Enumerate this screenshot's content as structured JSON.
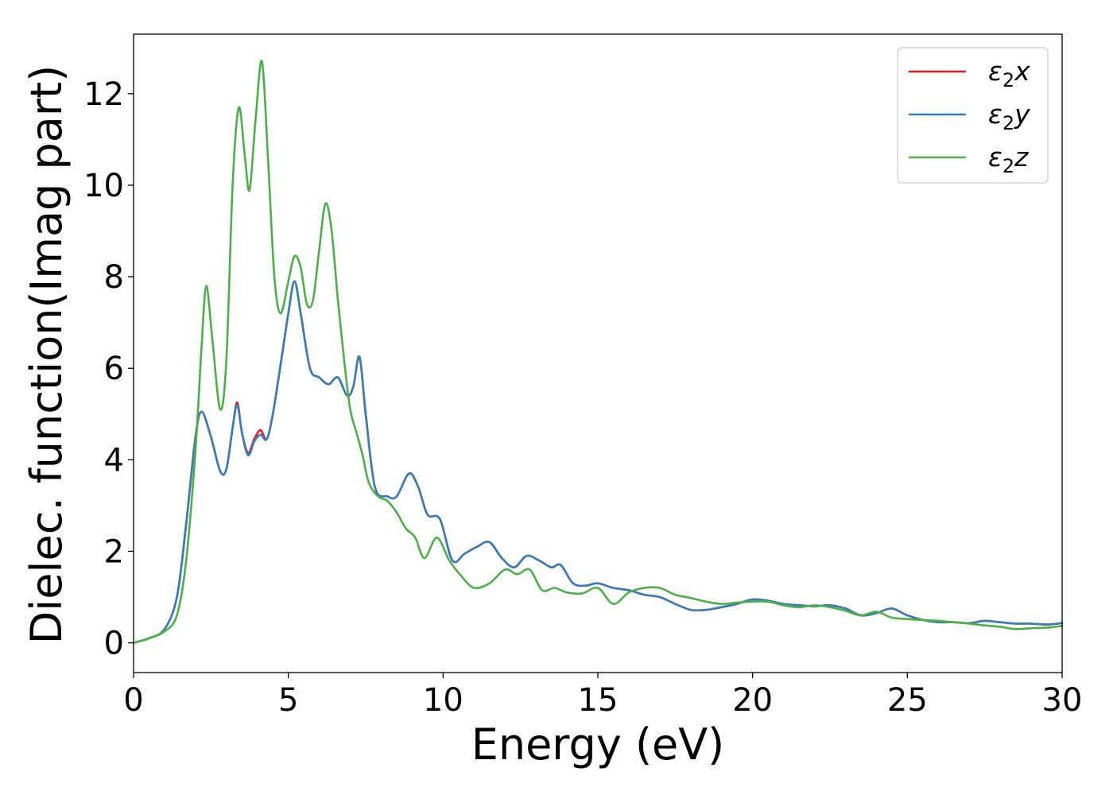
{
  "chart_data": {
    "type": "line",
    "xlabel": "Energy (eV)",
    "ylabel": "Dielec. function(Imag part)",
    "xlim": [
      0,
      30
    ],
    "ylim": [
      -0.65,
      13.3
    ],
    "xticks": [
      0,
      5,
      10,
      15,
      20,
      25,
      30
    ],
    "yticks": [
      0,
      2,
      4,
      6,
      8,
      10,
      12
    ],
    "grid": false,
    "legend_position": "top-right",
    "series": [
      {
        "name": "ε₂x",
        "legend_main": "ε",
        "legend_sub": "2",
        "legend_var": "x",
        "color": "#e41a1c",
        "points": [
          [
            0,
            0
          ],
          [
            0.5,
            0.1
          ],
          [
            1.0,
            0.3
          ],
          [
            1.4,
            1.0
          ],
          [
            1.7,
            2.6
          ],
          [
            2.0,
            4.5
          ],
          [
            2.2,
            5.05
          ],
          [
            2.5,
            4.5
          ],
          [
            2.8,
            3.75
          ],
          [
            3.0,
            3.8
          ],
          [
            3.2,
            4.7
          ],
          [
            3.35,
            5.25
          ],
          [
            3.5,
            4.6
          ],
          [
            3.7,
            4.15
          ],
          [
            3.9,
            4.45
          ],
          [
            4.1,
            4.65
          ],
          [
            4.3,
            4.45
          ],
          [
            4.5,
            5.0
          ],
          [
            4.8,
            6.3
          ],
          [
            5.0,
            7.2
          ],
          [
            5.2,
            7.9
          ],
          [
            5.4,
            7.2
          ],
          [
            5.7,
            6.0
          ],
          [
            6.0,
            5.8
          ],
          [
            6.3,
            5.65
          ],
          [
            6.6,
            5.8
          ],
          [
            6.9,
            5.4
          ],
          [
            7.1,
            5.6
          ],
          [
            7.3,
            6.25
          ],
          [
            7.5,
            5.0
          ],
          [
            7.8,
            3.4
          ],
          [
            8.2,
            3.2
          ],
          [
            8.5,
            3.2
          ],
          [
            8.9,
            3.7
          ],
          [
            9.2,
            3.4
          ],
          [
            9.5,
            2.8
          ],
          [
            9.9,
            2.7
          ],
          [
            10.3,
            1.8
          ],
          [
            10.7,
            1.95
          ],
          [
            11.1,
            2.1
          ],
          [
            11.5,
            2.2
          ],
          [
            11.9,
            1.85
          ],
          [
            12.3,
            1.65
          ],
          [
            12.7,
            1.9
          ],
          [
            13.1,
            1.8
          ],
          [
            13.5,
            1.65
          ],
          [
            13.8,
            1.7
          ],
          [
            14.2,
            1.3
          ],
          [
            14.6,
            1.25
          ],
          [
            15.0,
            1.3
          ],
          [
            15.5,
            1.2
          ],
          [
            16.0,
            1.15
          ],
          [
            16.5,
            1.05
          ],
          [
            17.0,
            1.0
          ],
          [
            17.5,
            0.85
          ],
          [
            18.0,
            0.72
          ],
          [
            18.5,
            0.72
          ],
          [
            19.0,
            0.78
          ],
          [
            19.5,
            0.85
          ],
          [
            20.0,
            0.95
          ],
          [
            20.5,
            0.92
          ],
          [
            21.0,
            0.85
          ],
          [
            21.5,
            0.82
          ],
          [
            22.0,
            0.8
          ],
          [
            22.5,
            0.82
          ],
          [
            23.0,
            0.75
          ],
          [
            23.5,
            0.6
          ],
          [
            24.0,
            0.65
          ],
          [
            24.5,
            0.75
          ],
          [
            25.0,
            0.6
          ],
          [
            25.5,
            0.5
          ],
          [
            26.0,
            0.45
          ],
          [
            26.5,
            0.45
          ],
          [
            27.0,
            0.43
          ],
          [
            27.5,
            0.48
          ],
          [
            28.0,
            0.45
          ],
          [
            28.5,
            0.42
          ],
          [
            29.0,
            0.42
          ],
          [
            29.5,
            0.4
          ],
          [
            30.0,
            0.43
          ]
        ]
      },
      {
        "name": "ε₂y",
        "legend_main": "ε",
        "legend_sub": "2",
        "legend_var": "y",
        "color": "#377eb8",
        "points": [
          [
            0,
            0
          ],
          [
            0.5,
            0.1
          ],
          [
            1.0,
            0.3
          ],
          [
            1.4,
            1.0
          ],
          [
            1.7,
            2.6
          ],
          [
            2.0,
            4.5
          ],
          [
            2.2,
            5.05
          ],
          [
            2.5,
            4.5
          ],
          [
            2.8,
            3.75
          ],
          [
            3.0,
            3.8
          ],
          [
            3.2,
            4.7
          ],
          [
            3.35,
            5.2
          ],
          [
            3.5,
            4.6
          ],
          [
            3.7,
            4.1
          ],
          [
            3.9,
            4.4
          ],
          [
            4.1,
            4.55
          ],
          [
            4.3,
            4.45
          ],
          [
            4.5,
            5.0
          ],
          [
            4.8,
            6.3
          ],
          [
            5.0,
            7.2
          ],
          [
            5.2,
            7.9
          ],
          [
            5.4,
            7.2
          ],
          [
            5.7,
            6.0
          ],
          [
            6.0,
            5.8
          ],
          [
            6.3,
            5.65
          ],
          [
            6.6,
            5.8
          ],
          [
            6.9,
            5.4
          ],
          [
            7.1,
            5.6
          ],
          [
            7.3,
            6.25
          ],
          [
            7.5,
            5.0
          ],
          [
            7.8,
            3.4
          ],
          [
            8.2,
            3.2
          ],
          [
            8.5,
            3.2
          ],
          [
            8.9,
            3.7
          ],
          [
            9.2,
            3.4
          ],
          [
            9.5,
            2.8
          ],
          [
            9.9,
            2.7
          ],
          [
            10.3,
            1.8
          ],
          [
            10.7,
            1.95
          ],
          [
            11.1,
            2.1
          ],
          [
            11.5,
            2.2
          ],
          [
            11.9,
            1.85
          ],
          [
            12.3,
            1.65
          ],
          [
            12.7,
            1.9
          ],
          [
            13.1,
            1.8
          ],
          [
            13.5,
            1.65
          ],
          [
            13.8,
            1.7
          ],
          [
            14.2,
            1.3
          ],
          [
            14.6,
            1.25
          ],
          [
            15.0,
            1.3
          ],
          [
            15.5,
            1.2
          ],
          [
            16.0,
            1.15
          ],
          [
            16.5,
            1.05
          ],
          [
            17.0,
            1.0
          ],
          [
            17.5,
            0.85
          ],
          [
            18.0,
            0.72
          ],
          [
            18.5,
            0.72
          ],
          [
            19.0,
            0.78
          ],
          [
            19.5,
            0.85
          ],
          [
            20.0,
            0.95
          ],
          [
            20.5,
            0.92
          ],
          [
            21.0,
            0.85
          ],
          [
            21.5,
            0.82
          ],
          [
            22.0,
            0.8
          ],
          [
            22.5,
            0.82
          ],
          [
            23.0,
            0.75
          ],
          [
            23.5,
            0.6
          ],
          [
            24.0,
            0.65
          ],
          [
            24.5,
            0.75
          ],
          [
            25.0,
            0.6
          ],
          [
            25.5,
            0.5
          ],
          [
            26.0,
            0.45
          ],
          [
            26.5,
            0.45
          ],
          [
            27.0,
            0.43
          ],
          [
            27.5,
            0.48
          ],
          [
            28.0,
            0.45
          ],
          [
            28.5,
            0.42
          ],
          [
            29.0,
            0.42
          ],
          [
            29.5,
            0.4
          ],
          [
            30.0,
            0.43
          ]
        ]
      },
      {
        "name": "ε₂z",
        "legend_main": "ε",
        "legend_sub": "2",
        "legend_var": "z",
        "color": "#4daf4a",
        "points": [
          [
            0,
            0
          ],
          [
            0.5,
            0.1
          ],
          [
            1.0,
            0.25
          ],
          [
            1.4,
            0.6
          ],
          [
            1.7,
            1.8
          ],
          [
            2.0,
            4.2
          ],
          [
            2.2,
            6.5
          ],
          [
            2.35,
            7.8
          ],
          [
            2.55,
            6.6
          ],
          [
            2.8,
            5.1
          ],
          [
            3.0,
            6.2
          ],
          [
            3.2,
            10.0
          ],
          [
            3.4,
            11.7
          ],
          [
            3.6,
            10.6
          ],
          [
            3.75,
            9.9
          ],
          [
            3.95,
            11.5
          ],
          [
            4.15,
            12.7
          ],
          [
            4.35,
            10.5
          ],
          [
            4.55,
            8.0
          ],
          [
            4.75,
            7.2
          ],
          [
            5.0,
            7.9
          ],
          [
            5.2,
            8.45
          ],
          [
            5.4,
            8.2
          ],
          [
            5.6,
            7.4
          ],
          [
            5.8,
            7.5
          ],
          [
            6.0,
            8.6
          ],
          [
            6.2,
            9.6
          ],
          [
            6.4,
            9.0
          ],
          [
            6.6,
            7.5
          ],
          [
            6.8,
            6.2
          ],
          [
            7.0,
            5.1
          ],
          [
            7.2,
            4.6
          ],
          [
            7.4,
            4.1
          ],
          [
            7.6,
            3.5
          ],
          [
            7.9,
            3.2
          ],
          [
            8.2,
            3.1
          ],
          [
            8.5,
            2.85
          ],
          [
            8.8,
            2.5
          ],
          [
            9.1,
            2.3
          ],
          [
            9.4,
            1.85
          ],
          [
            9.8,
            2.3
          ],
          [
            10.2,
            1.8
          ],
          [
            10.6,
            1.45
          ],
          [
            11.0,
            1.2
          ],
          [
            11.5,
            1.3
          ],
          [
            12.0,
            1.6
          ],
          [
            12.4,
            1.5
          ],
          [
            12.8,
            1.6
          ],
          [
            13.2,
            1.15
          ],
          [
            13.6,
            1.2
          ],
          [
            14.0,
            1.1
          ],
          [
            14.5,
            1.08
          ],
          [
            15.0,
            1.2
          ],
          [
            15.5,
            0.85
          ],
          [
            16.0,
            1.1
          ],
          [
            16.5,
            1.2
          ],
          [
            17.0,
            1.2
          ],
          [
            17.5,
            1.05
          ],
          [
            18.0,
            0.98
          ],
          [
            18.5,
            0.9
          ],
          [
            19.0,
            0.85
          ],
          [
            19.5,
            0.88
          ],
          [
            20.0,
            0.9
          ],
          [
            20.5,
            0.9
          ],
          [
            21.0,
            0.82
          ],
          [
            21.5,
            0.78
          ],
          [
            22.0,
            0.82
          ],
          [
            22.5,
            0.78
          ],
          [
            23.0,
            0.7
          ],
          [
            23.5,
            0.6
          ],
          [
            24.0,
            0.68
          ],
          [
            24.5,
            0.55
          ],
          [
            25.0,
            0.52
          ],
          [
            25.5,
            0.5
          ],
          [
            26.0,
            0.48
          ],
          [
            26.5,
            0.45
          ],
          [
            27.0,
            0.42
          ],
          [
            27.5,
            0.38
          ],
          [
            28.0,
            0.35
          ],
          [
            28.5,
            0.3
          ],
          [
            29.0,
            0.32
          ],
          [
            29.5,
            0.33
          ],
          [
            30.0,
            0.37
          ]
        ]
      }
    ]
  }
}
